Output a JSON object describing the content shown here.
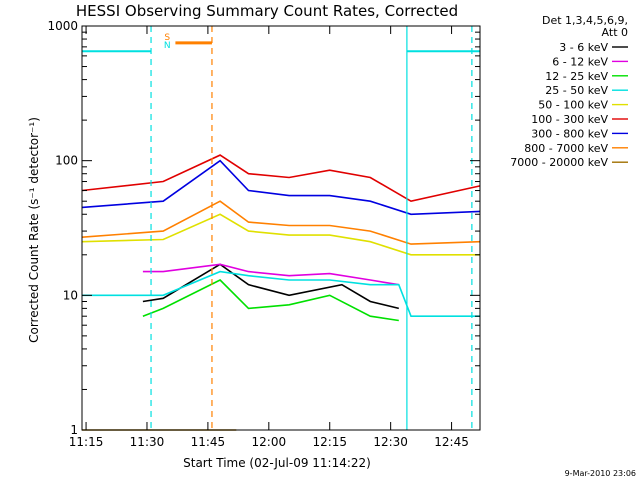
{
  "chart_data": {
    "type": "line",
    "title": "HESSI Observing Summary Count Rates, Corrected",
    "xlabel": "Start Time (02-Jul-09 11:14:22)",
    "ylabel": "Corrected Count Rate (s⁻¹ detector⁻¹)",
    "y_scale": "log",
    "ylim": [
      1,
      1000
    ],
    "xlim": [
      "11:14",
      "12:52"
    ],
    "x_ticks": [
      "11:15",
      "11:30",
      "11:45",
      "12:00",
      "12:15",
      "12:30",
      "12:45"
    ],
    "y_ticks": [
      "1",
      "10",
      "100",
      "1000"
    ],
    "legend_header": [
      "Det 1,3,4,5,6,9,",
      "Att 0"
    ],
    "legend_position": "right",
    "series": [
      {
        "name": "3 - 6 keV",
        "color": "#000000",
        "points": [
          [
            "11:29",
            9
          ],
          [
            "11:34",
            9.5
          ],
          [
            "11:48",
            17
          ],
          [
            "11:55",
            12
          ],
          [
            "12:05",
            10
          ],
          [
            "12:18",
            12
          ],
          [
            "12:25",
            9
          ],
          [
            "12:32",
            8
          ]
        ]
      },
      {
        "name": "6 - 12 keV",
        "color": "#e000e0",
        "points": [
          [
            "11:29",
            15
          ],
          [
            "11:34",
            15
          ],
          [
            "11:48",
            17
          ],
          [
            "11:55",
            15
          ],
          [
            "12:05",
            14
          ],
          [
            "12:15",
            14.5
          ],
          [
            "12:25",
            13
          ],
          [
            "12:32",
            12
          ]
        ]
      },
      {
        "name": "12 - 25 keV",
        "color": "#00e000",
        "points": [
          [
            "11:29",
            7
          ],
          [
            "11:34",
            8
          ],
          [
            "11:48",
            13
          ],
          [
            "11:55",
            8
          ],
          [
            "12:05",
            8.5
          ],
          [
            "12:15",
            10
          ],
          [
            "12:25",
            7
          ],
          [
            "12:32",
            6.5
          ]
        ]
      },
      {
        "name": "25 - 50 keV",
        "color": "#00e0e0",
        "points": [
          [
            "11:14",
            10
          ],
          [
            "11:34",
            10
          ],
          [
            "11:48",
            15
          ],
          [
            "11:55",
            14
          ],
          [
            "12:05",
            13
          ],
          [
            "12:15",
            13
          ],
          [
            "12:25",
            12
          ],
          [
            "12:32",
            12
          ],
          [
            "12:35",
            7
          ],
          [
            "12:52",
            7
          ]
        ]
      },
      {
        "name": "50 - 100 keV",
        "color": "#e0e000",
        "points": [
          [
            "11:14",
            25
          ],
          [
            "11:34",
            26
          ],
          [
            "11:48",
            40
          ],
          [
            "11:55",
            30
          ],
          [
            "12:05",
            28
          ],
          [
            "12:15",
            28
          ],
          [
            "12:25",
            25
          ],
          [
            "12:35",
            20
          ],
          [
            "12:52",
            20
          ]
        ]
      },
      {
        "name": "100 - 300 keV",
        "color": "#e00000",
        "points": [
          [
            "11:14",
            60
          ],
          [
            "11:34",
            70
          ],
          [
            "11:48",
            110
          ],
          [
            "11:55",
            80
          ],
          [
            "12:05",
            75
          ],
          [
            "12:15",
            85
          ],
          [
            "12:25",
            75
          ],
          [
            "12:35",
            50
          ],
          [
            "12:52",
            65
          ]
        ]
      },
      {
        "name": "300 - 800 keV",
        "color": "#0000e0",
        "points": [
          [
            "11:14",
            45
          ],
          [
            "11:34",
            50
          ],
          [
            "11:48",
            100
          ],
          [
            "11:55",
            60
          ],
          [
            "12:05",
            55
          ],
          [
            "12:15",
            55
          ],
          [
            "12:25",
            50
          ],
          [
            "12:35",
            40
          ],
          [
            "12:52",
            42
          ]
        ]
      },
      {
        "name": "800 - 7000 keV",
        "color": "#ff8000",
        "points": [
          [
            "11:14",
            27
          ],
          [
            "11:34",
            30
          ],
          [
            "11:48",
            50
          ],
          [
            "11:55",
            35
          ],
          [
            "12:05",
            33
          ],
          [
            "12:15",
            33
          ],
          [
            "12:25",
            30
          ],
          [
            "12:35",
            24
          ],
          [
            "12:52",
            25
          ]
        ]
      },
      {
        "name": "7000 - 20000 keV",
        "color": "#a07000",
        "points": [
          [
            "11:14",
            1
          ],
          [
            "11:52",
            1
          ]
        ]
      }
    ],
    "overlays": [
      {
        "label": "",
        "color": "#00e0e0",
        "level": 650,
        "from": "11:14",
        "to": "11:31"
      },
      {
        "label": "",
        "color": "#00e0e0",
        "level": 650,
        "from": "12:34",
        "to": "12:52"
      },
      {
        "label": "",
        "color": "#ff8000",
        "level": 750,
        "from": "11:37",
        "to": "11:46"
      },
      {
        "label": "S",
        "color": "#ff8000",
        "at": "11:35"
      },
      {
        "label": "N",
        "color": "#00e0e0",
        "at": "11:35"
      }
    ],
    "markers": [
      {
        "color": "#00e0e0",
        "at": "11:31",
        "style": "dashed"
      },
      {
        "color": "#ff8000",
        "at": "11:46",
        "style": "dashed"
      },
      {
        "color": "#00e0e0",
        "at": "12:34",
        "style": "solid"
      },
      {
        "color": "#00e0e0",
        "at": "12:50",
        "style": "dashed"
      }
    ],
    "timestamp": "9-Mar-2010 23:06"
  }
}
